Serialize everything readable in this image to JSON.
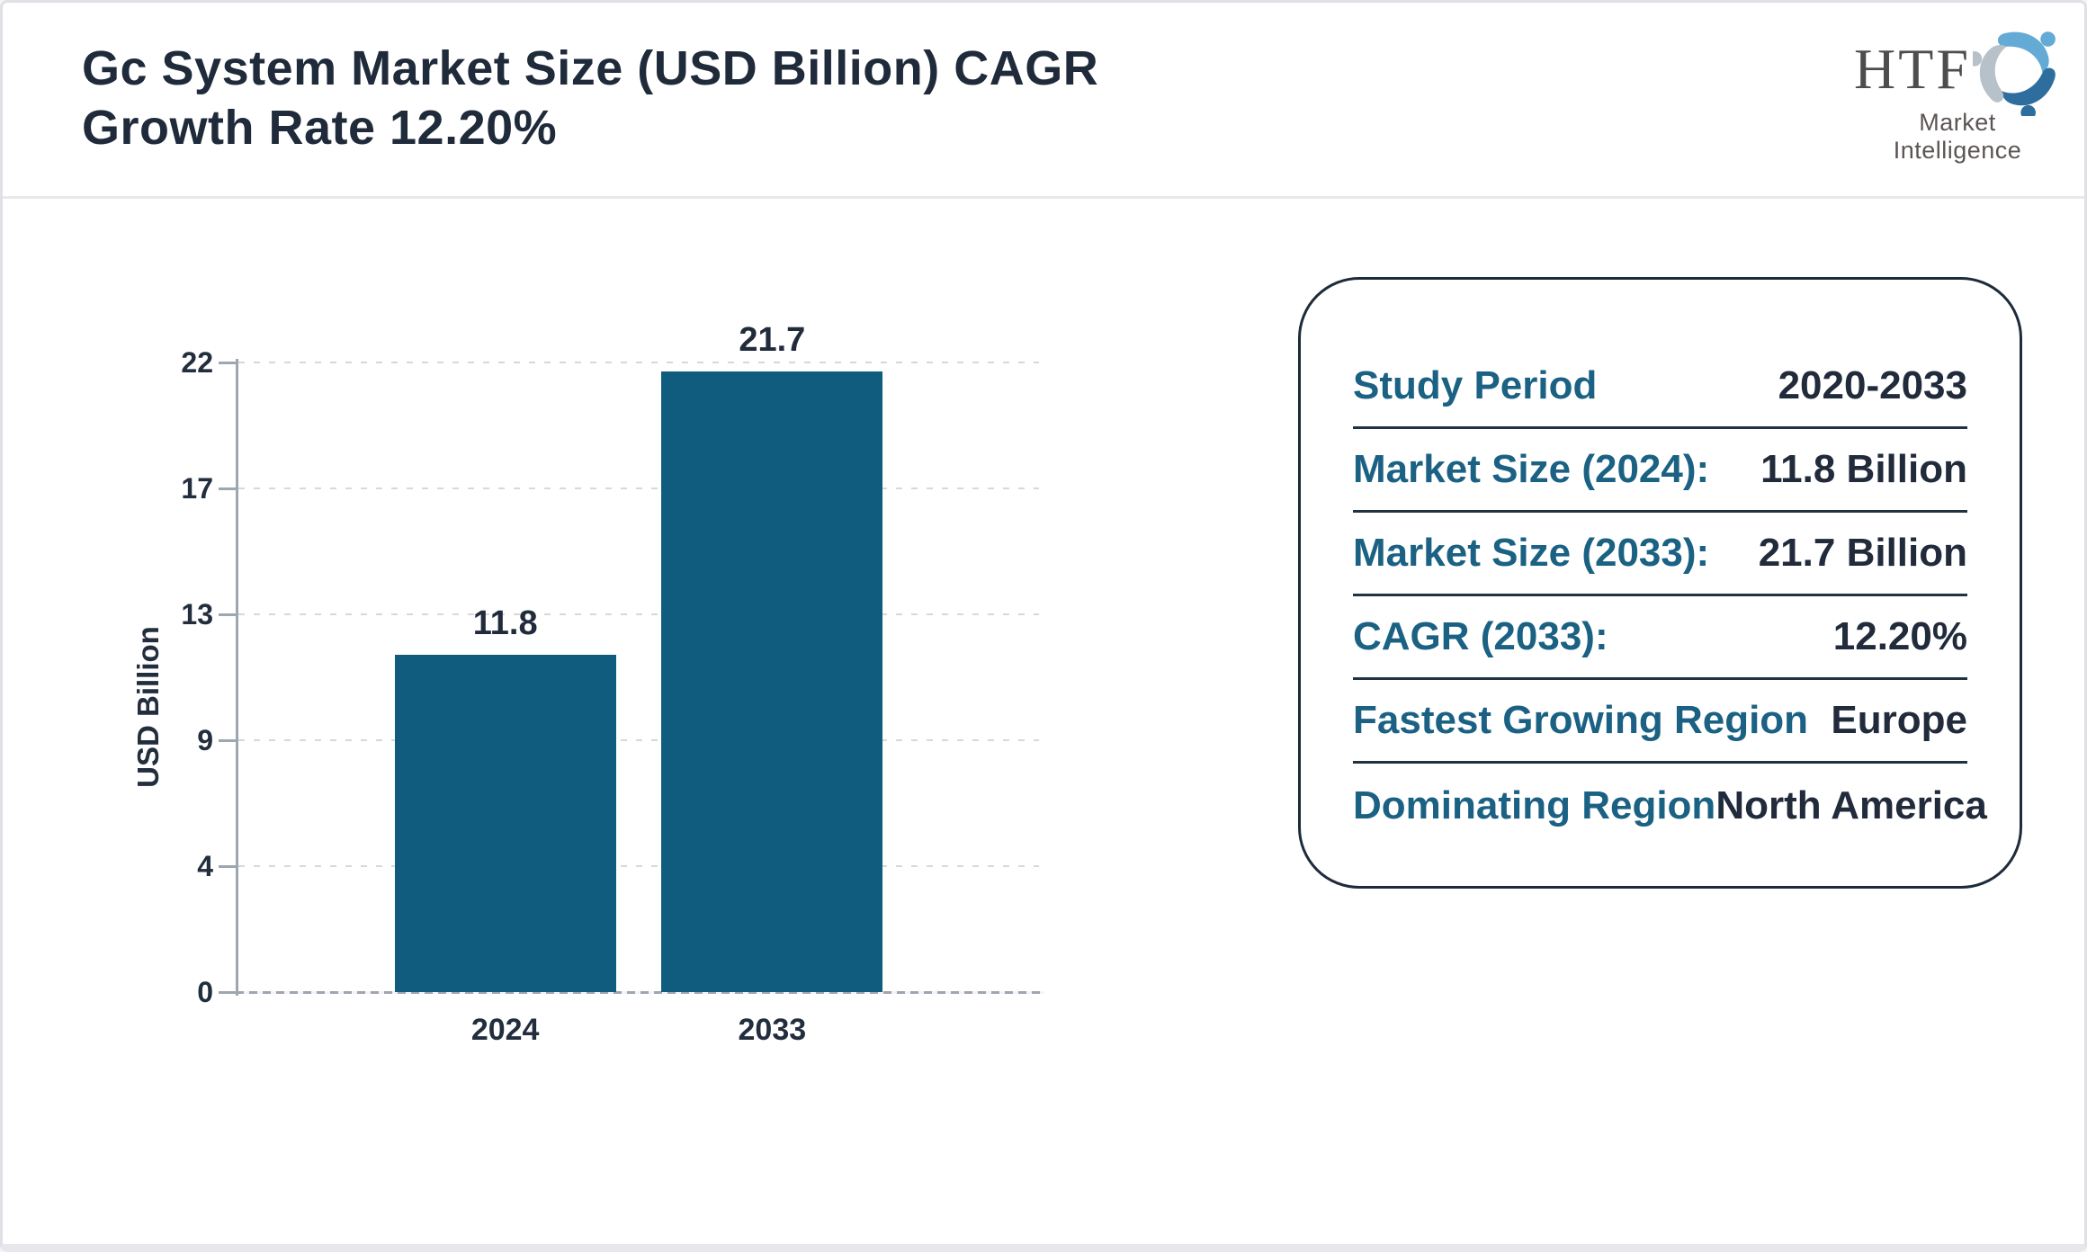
{
  "header": {
    "title_line1": "Gc System Market Size (USD Billion) CAGR",
    "title_line2": "Growth Rate 12.20%",
    "logo": {
      "brand": "HTF",
      "tagline": "Market Intelligence",
      "swirl_colors": [
        "#63aad5",
        "#2e6e9e",
        "#b6c1ca"
      ]
    }
  },
  "chart_data": {
    "type": "bar",
    "title": "Gc System Market Size (USD Billion) CAGR Growth Rate 12.20%",
    "categories": [
      "2024",
      "2033"
    ],
    "values": [
      11.8,
      21.7
    ],
    "bar_value_labels": [
      "11.8",
      "21.7"
    ],
    "xlabel": "",
    "ylabel": "USD Billion",
    "yticks": [
      0,
      4,
      9,
      13,
      17,
      22
    ],
    "ylim": [
      0,
      22
    ],
    "grid": "horizontal-dotted",
    "legend": "none",
    "bar_color": "#0f5c7f"
  },
  "summary_card": {
    "rows": [
      {
        "label": "Study Period",
        "value": "2020-2033"
      },
      {
        "label": "Market Size (2024):",
        "value": "11.8 Billion"
      },
      {
        "label": "Market Size (2033):",
        "value": "21.7 Billion"
      },
      {
        "label": "CAGR (2033):",
        "value": "12.20%"
      },
      {
        "label": "Fastest Growing Region",
        "value": "Europe"
      },
      {
        "label": "Dominating Region",
        "value": "North America"
      }
    ],
    "label_color": "#1b6183",
    "value_color": "#212b3b"
  },
  "colors": {
    "title_text": "#1f2a3a",
    "bar": "#0f5c7f",
    "axis": "#9ea6b0",
    "gridline": "#d8d8d8",
    "card_border": "#1d2b3a",
    "page_border": "#dfe1e6"
  }
}
